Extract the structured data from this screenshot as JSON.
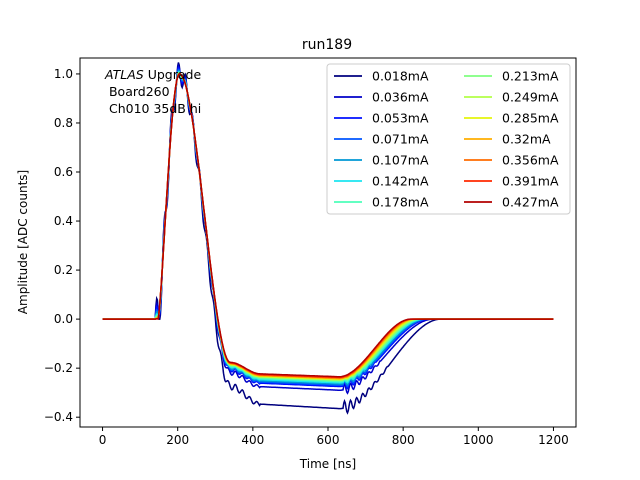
{
  "chart_data": {
    "type": "line",
    "title": "run189",
    "xlabel": "Time [ns]",
    "ylabel": "Amplitude [ADC counts]",
    "xlim": [
      -60,
      1260
    ],
    "ylim": [
      -0.44,
      1.065
    ],
    "xticks": [
      0,
      200,
      400,
      600,
      800,
      1000,
      1200
    ],
    "yticks": [
      -0.4,
      -0.2,
      0.0,
      0.2,
      0.4,
      0.6,
      0.8,
      1.0
    ],
    "xtick_labels": [
      "0",
      "200",
      "400",
      "600",
      "800",
      "1000",
      "1200"
    ],
    "ytick_labels": [
      "−0.4",
      "−0.2",
      "0.0",
      "0.2",
      "0.4",
      "0.6",
      "0.8",
      "1.0"
    ],
    "grid": false,
    "legend_position": "top-right",
    "legend_columns": 2,
    "annotation": {
      "italic_part": "ATLAS",
      "rest_line1": " Upgrade",
      "line2": " Board260",
      "line3": " Ch010 35dB hi"
    },
    "series": [
      {
        "name": "0.018mA",
        "color": "#00007f",
        "undershoot": -0.365,
        "ringing": 1.0,
        "recovery_end": 720
      },
      {
        "name": "0.036mA",
        "color": "#0000c8",
        "undershoot": -0.29,
        "ringing": 0.75,
        "recovery_end": 700
      },
      {
        "name": "0.053mA",
        "color": "#0010ff",
        "undershoot": -0.275,
        "ringing": 0.6,
        "recovery_end": 690
      },
      {
        "name": "0.071mA",
        "color": "#0054ff",
        "undershoot": -0.27,
        "ringing": 0.45,
        "recovery_end": 685
      },
      {
        "name": "0.107mA",
        "color": "#0098d4",
        "undershoot": -0.265,
        "ringing": 0.35,
        "recovery_end": 680
      },
      {
        "name": "0.142mA",
        "color": "#1be4f0",
        "undershoot": -0.26,
        "ringing": 0.25,
        "recovery_end": 675
      },
      {
        "name": "0.178mA",
        "color": "#4dffb9",
        "undershoot": -0.255,
        "ringing": 0.18,
        "recovery_end": 670
      },
      {
        "name": "0.213mA",
        "color": "#7fff7f",
        "undershoot": -0.25,
        "ringing": 0.12,
        "recovery_end": 665
      },
      {
        "name": "0.249mA",
        "color": "#b2ff47",
        "undershoot": -0.248,
        "ringing": 0.08,
        "recovery_end": 660
      },
      {
        "name": "0.285mA",
        "color": "#e4f50c",
        "undershoot": -0.245,
        "ringing": 0.06,
        "recovery_end": 655
      },
      {
        "name": "0.32mA",
        "color": "#ffae00",
        "undershoot": -0.243,
        "ringing": 0.04,
        "recovery_end": 650
      },
      {
        "name": "0.356mA",
        "color": "#ff6c00",
        "undershoot": -0.24,
        "ringing": 0.03,
        "recovery_end": 645
      },
      {
        "name": "0.391mA",
        "color": "#ff2a00",
        "undershoot": -0.238,
        "ringing": 0.02,
        "recovery_end": 642
      },
      {
        "name": "0.427mA",
        "color": "#b20000",
        "undershoot": -0.235,
        "ringing": 0.01,
        "recovery_end": 640
      }
    ]
  }
}
